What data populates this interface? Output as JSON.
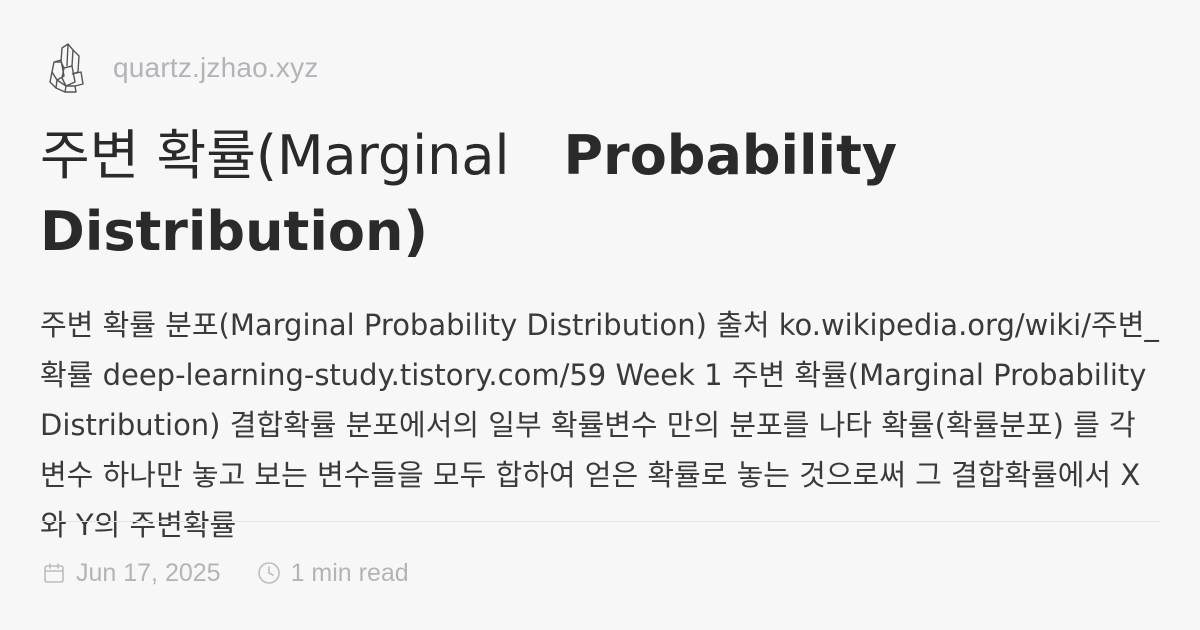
{
  "site": {
    "logo_icon": "crystal-logo-icon",
    "domain": "quartz.jzhao.xyz"
  },
  "article": {
    "title_part1": "주변 확률(Marginal",
    "title_part2": "Probability Distribution)",
    "description": "주변 확률 분포(Marginal Probability Distribution) 출처 ko.wikipedia.org/wiki/주변_확률 deep-learning-study.tistory.com/59 Week 1 주변 확률(Marginal Probability Distribution) 결합확률 분포에서의 일부 확률변수 만의 분포를 나타 확률(확률분포) 를 각 변수 하나만 놓고 보는 변수들을 모두 합하여 얻은 확률로 놓는 것으로써 그 결합확률에서 X와 Y의 주변확률"
  },
  "meta": {
    "date_icon": "calendar-icon",
    "date": "Jun 17, 2025",
    "read_icon": "clock-icon",
    "read_time": "1 min read"
  },
  "colors": {
    "background": "#f7f7f8",
    "title": "#2a2a2a",
    "body": "#3a3a3a",
    "muted": "#b4b4b8",
    "divider": "#e4e4e6"
  }
}
